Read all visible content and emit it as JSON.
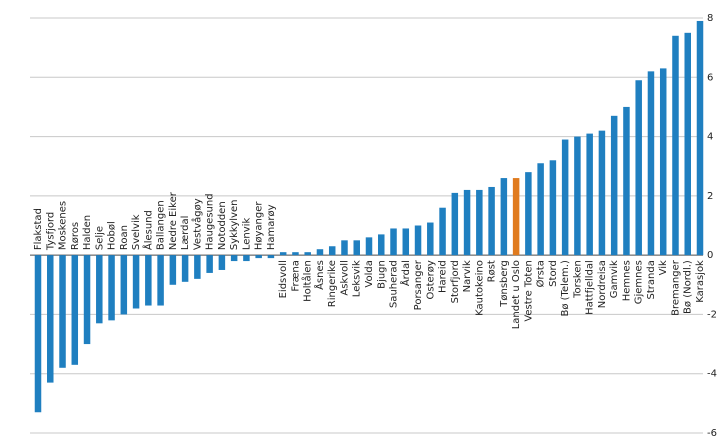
{
  "chart_data": {
    "type": "bar",
    "categories": [
      "Flakstad",
      "Tysfjord",
      "Moskenes",
      "Røros",
      "Halden",
      "Selje",
      "Hobøl",
      "Roan",
      "Svelvik",
      "Ålesund",
      "Ballangen",
      "Nedre Eiker",
      "Lærdal",
      "Vestvågøy",
      "Haugesund",
      "Notodden",
      "Sykkylven",
      "Lenvik",
      "Høyanger",
      "Hamarøy",
      "Eidsvoll",
      "Fræna",
      "Holtålen",
      "Åsnes",
      "Ringerike",
      "Askvoll",
      "Leksvik",
      "Volda",
      "Bjugn",
      "Sauherad",
      "Årdal",
      "Porsanger",
      "Osterøy",
      "Hareid",
      "Storfjord",
      "Narvik",
      "Kautokeino",
      "Røst",
      "Tønsberg",
      "Landet u Oslo",
      "Vestre Toten",
      "Ørsta",
      "Stord",
      "Bø (Telem.)",
      "Torsken",
      "Hattfjelldal",
      "Nordreisa",
      "Gamvik",
      "Hemnes",
      "Gjemnes",
      "Stranda",
      "Vik",
      "Bremanger",
      "Bø (Nordl.)",
      "Karasjok"
    ],
    "values": [
      -5.3,
      -4.3,
      -3.8,
      -3.7,
      -3.0,
      -2.3,
      -2.2,
      -2.0,
      -1.8,
      -1.7,
      -1.7,
      -1.0,
      -0.9,
      -0.8,
      -0.6,
      -0.5,
      -0.2,
      -0.2,
      -0.1,
      -0.1,
      0.1,
      0.1,
      0.1,
      0.2,
      0.3,
      0.5,
      0.5,
      0.6,
      0.7,
      0.9,
      0.9,
      1.0,
      1.1,
      1.6,
      2.1,
      2.2,
      2.2,
      2.3,
      2.6,
      2.6,
      2.8,
      3.1,
      3.2,
      3.9,
      4.0,
      4.1,
      4.2,
      4.7,
      5.0,
      5.9,
      6.2,
      6.3,
      7.4,
      7.5,
      7.9
    ],
    "color": "#1f7fc0",
    "highlight": {
      "category": "Landet u Oslo",
      "color": "#e07b1f"
    },
    "ylim": [
      -6,
      8
    ],
    "yticks": [
      -6,
      -4,
      -2,
      0,
      2,
      4,
      6,
      8
    ],
    "grid": true
  }
}
